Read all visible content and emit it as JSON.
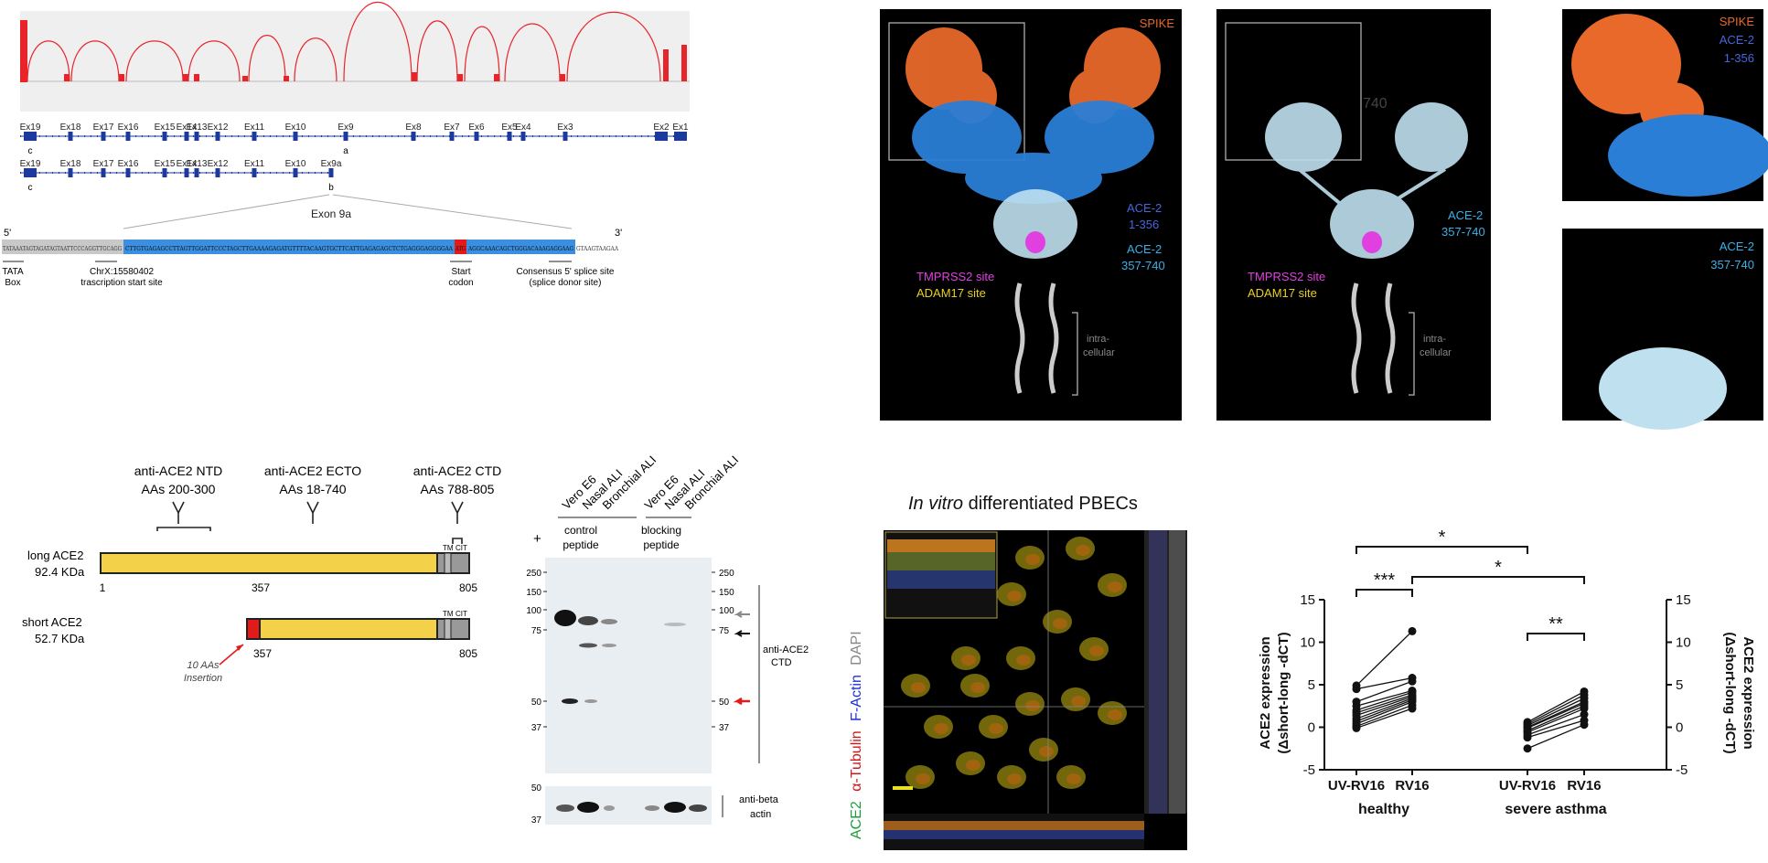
{
  "colors": {
    "sashimi_red": "#e8242a",
    "gene_blue": "#1c3a9e",
    "exon9a_blue": "#3a8fe0",
    "start_red": "#e21a1a",
    "protein_yellow": "#f3d24a",
    "spike_orange": "#e8692a",
    "ace2_darkblue": "#4466dd",
    "ace2_lightblue": "#3ab0e8",
    "tmprss2_magenta": "#e040e0",
    "adam17_yellow": "#e8d020"
  },
  "panel_a": {
    "exon_labels_long": [
      "Ex19",
      "Ex18",
      "Ex17",
      "Ex16",
      "Ex15",
      "Ex14",
      "Ex13",
      "Ex12",
      "Ex11",
      "Ex10",
      "Ex9",
      "Ex8",
      "Ex7",
      "Ex6",
      "Ex5",
      "Ex4",
      "Ex3",
      "Ex2",
      "Ex1"
    ],
    "exon_labels_short": [
      "Ex19",
      "Ex18",
      "Ex17",
      "Ex16",
      "Ex15",
      "Ex14",
      "Ex13",
      "Ex12",
      "Ex11",
      "Ex10",
      "Ex9a"
    ],
    "marker_c1": "c",
    "marker_a": "a",
    "marker_c2": "c",
    "marker_b": "b",
    "exon9a_title": "Exon 9a",
    "five_prime": "5'",
    "three_prime": "3'",
    "sequence_grey": "TATAAATAGTAGATAGTAATTCCCAGGTTGCAGG",
    "sequence_blue": "CTTGTGAGAGCCTTAGTTGGATTCCCTAGCTTGAAAAGAGATGTTTTACAAGTGCTTCATTGAGAGAGCTCTGAGGGAGGGGAA",
    "sequence_start": "ATG",
    "sequence_blue2": "AGGCAAACAGCTGGGACAAAGAGGAAG",
    "sequence_tail": "GTAAGTAAGAA",
    "tata_label": "TATA\nBox",
    "tss_label_1": "ChrX:15580402",
    "tss_label_2": "trascription start site",
    "start_label_1": "Start",
    "start_label_2": "codon",
    "splice_label_1": "Consensus 5' splice site",
    "splice_label_2": "(splice donor site)"
  },
  "panel_b": {
    "left": {
      "spike": "SPIKE",
      "ace2_a": "ACE-2",
      "ace2_a_range": "1-356",
      "ace2_b": "ACE-2",
      "ace2_b_range": "357-740",
      "tmprss2": "TMPRSS2 site",
      "adam17": "ADAM17 site",
      "intra_1": "intra-",
      "intra_2": "cellular"
    },
    "middle": {
      "faint": "740",
      "ace2": "ACE-2",
      "ace2_range": "357-740",
      "tmprss2": "TMPRSS2 site",
      "adam17": "ADAM17 site",
      "intra_1": "intra-",
      "intra_2": "cellular"
    },
    "right_top": {
      "spike": "SPIKE",
      "ace2": "ACE-2",
      "ace2_range": "1-356"
    },
    "right_bottom": {
      "ace2": "ACE-2",
      "ace2_range": "357-740"
    }
  },
  "panel_c": {
    "ab_ntd_1": "anti-ACE2 NTD",
    "ab_ntd_2": "AAs 200-300",
    "ab_ecto_1": "anti-ACE2 ECTO",
    "ab_ecto_2": "AAs 18-740",
    "ab_ctd_1": "anti-ACE2 CTD",
    "ab_ctd_2": "AAs 788-805",
    "long_name": "long ACE2",
    "long_kda": "92.4 KDa",
    "short_name": "short ACE2",
    "short_kda": "52.7 KDa",
    "tm": "TM",
    "cit": "CIT",
    "pos_1": "1",
    "pos_357a": "357",
    "pos_805a": "805",
    "pos_357b": "357",
    "pos_805b": "805",
    "insertion_1": "10 AAs",
    "insertion_2": "Insertion"
  },
  "panel_d": {
    "plus": "+",
    "lanes_control": [
      "Vero E6",
      "Nasal ALI",
      "Bronchial ALI"
    ],
    "lanes_blocking": [
      "Vero E6",
      "Nasal ALI",
      "Bronchial ALI"
    ],
    "control_1": "control",
    "control_2": "peptide",
    "blocking_1": "blocking",
    "blocking_2": "peptide",
    "mw_markers": [
      "250",
      "150",
      "100",
      "75",
      "50",
      "37"
    ],
    "mw_markers_right": [
      "250",
      "150",
      "100",
      "75",
      "50",
      "37"
    ],
    "antibody_1": "anti-ACE2",
    "antibody_2": "CTD",
    "beta_markers": [
      "50",
      "37"
    ],
    "beta_1": "anti-beta",
    "beta_2": "actin"
  },
  "panel_e": {
    "title_italic": "In vitro",
    "title_rest": " differentiated PBECs",
    "legend_ace2": "ACE2",
    "legend_tubulin": "α-Tubulin",
    "legend_factin": "F-Actin",
    "legend_dapi": "DAPI"
  },
  "panel_f": {
    "ylabel_left_1": "ACE2 expression",
    "ylabel_left_2": "(Δshort-long -dCT)",
    "ylabel_right_1": "ACE2 expression",
    "ylabel_right_2": "(Δshort-long -dCT)",
    "sig_top": "*",
    "sig_cross": "*",
    "sig_healthy": "***",
    "sig_asthma": "**"
  },
  "chart_data": {
    "type": "scatter",
    "ylim": [
      -5,
      15
    ],
    "yticks": [
      "15",
      "10",
      "5",
      "0",
      "-5"
    ],
    "categories": [
      "UV-RV16",
      "RV16",
      "UV-RV16",
      "RV16"
    ],
    "groups": [
      "healthy",
      "severe asthma"
    ],
    "series": [
      {
        "group": "healthy",
        "pairs": [
          [
            4.9,
            11.3
          ],
          [
            4.5,
            5.8
          ],
          [
            3.0,
            5.4
          ],
          [
            2.5,
            4.3
          ],
          [
            2.0,
            4.1
          ],
          [
            1.7,
            3.8
          ],
          [
            1.4,
            3.6
          ],
          [
            1.0,
            3.4
          ],
          [
            0.7,
            3.2
          ],
          [
            0.4,
            3.0
          ],
          [
            0.1,
            2.6
          ],
          [
            -0.1,
            2.2
          ]
        ]
      },
      {
        "group": "severe asthma",
        "pairs": [
          [
            0.6,
            4.2
          ],
          [
            0.4,
            3.8
          ],
          [
            0.2,
            3.4
          ],
          [
            0.0,
            3.0
          ],
          [
            -0.1,
            2.8
          ],
          [
            -0.4,
            2.5
          ],
          [
            -0.6,
            2.2
          ],
          [
            -0.9,
            1.5
          ],
          [
            -1.2,
            0.8
          ],
          [
            -2.5,
            0.3
          ]
        ]
      }
    ]
  }
}
